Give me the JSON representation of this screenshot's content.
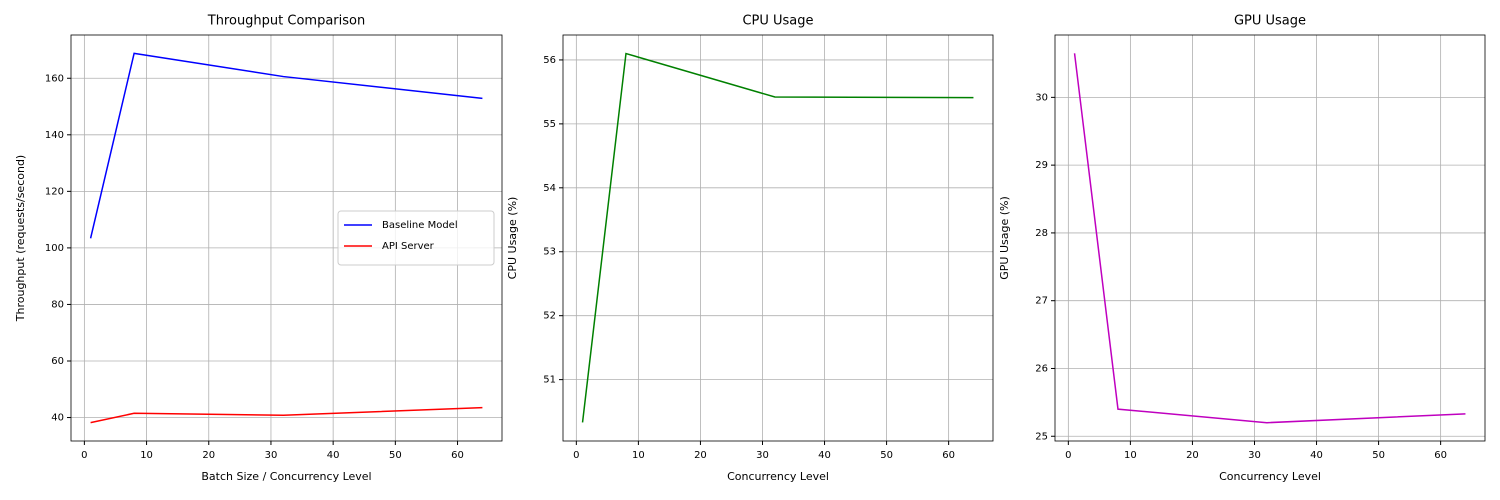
{
  "chart_data": [
    {
      "type": "line",
      "title": "Throughput Comparison",
      "xlabel": "Batch Size / Concurrency Level",
      "ylabel": "Throughput (requests/second)",
      "x": [
        1,
        8,
        32,
        64
      ],
      "series": [
        {
          "name": "Baseline Model",
          "color": "#0000ff",
          "values": [
            103.4,
            168.8,
            160.6,
            152.9
          ]
        },
        {
          "name": "API Server",
          "color": "#ff0000",
          "values": [
            38.2,
            41.5,
            40.8,
            43.5
          ]
        }
      ],
      "xlim": [
        -2.15,
        67.15
      ],
      "ylim": [
        31.7,
        175.3
      ],
      "xticks": [
        0,
        10,
        20,
        30,
        40,
        50,
        60
      ],
      "yticks": [
        40,
        60,
        80,
        100,
        120,
        140,
        160
      ],
      "grid": true,
      "legend": "center right"
    },
    {
      "type": "line",
      "title": "CPU Usage",
      "xlabel": "Concurrency Level",
      "ylabel": "CPU Usage (%)",
      "x": [
        1,
        8,
        32,
        64
      ],
      "series": [
        {
          "color": "#008000",
          "values": [
            50.33,
            56.1,
            55.42,
            55.41
          ]
        }
      ],
      "xlim": [
        -2.15,
        67.15
      ],
      "ylim": [
        50.04,
        56.39
      ],
      "xticks": [
        0,
        10,
        20,
        30,
        40,
        50,
        60
      ],
      "yticks": [
        51,
        52,
        53,
        54,
        55,
        56
      ],
      "grid": true
    },
    {
      "type": "line",
      "title": "GPU Usage",
      "xlabel": "Concurrency Level",
      "ylabel": "GPU Usage (%)",
      "x": [
        1,
        8,
        32,
        64
      ],
      "series": [
        {
          "color": "#bf00bf",
          "values": [
            30.65,
            25.4,
            25.2,
            25.33
          ]
        }
      ],
      "xlim": [
        -2.15,
        67.15
      ],
      "ylim": [
        24.93,
        30.92
      ],
      "xticks": [
        0,
        10,
        20,
        30,
        40,
        50,
        60
      ],
      "yticks": [
        25,
        26,
        27,
        28,
        29,
        30
      ],
      "grid": true
    }
  ]
}
